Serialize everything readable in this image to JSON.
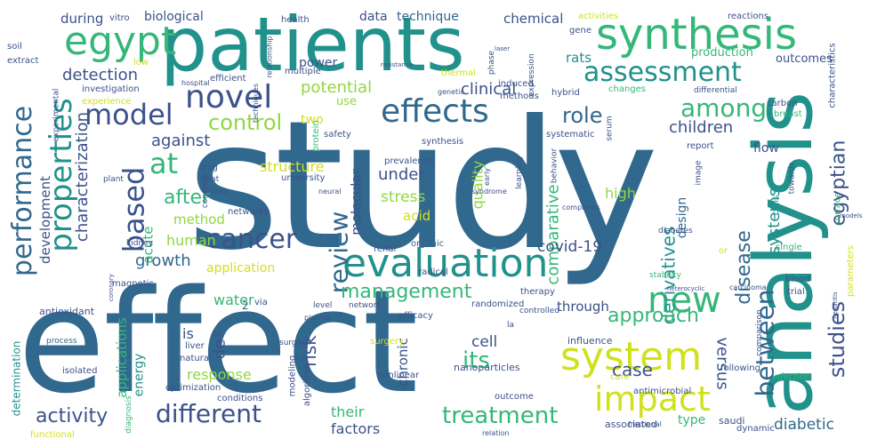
{
  "palette": {
    "background": "#ffffff",
    "dark_purple": "#440154",
    "indigo": "#3b528b",
    "blue": "#31688e",
    "teal": "#21918c",
    "green": "#35b779",
    "lime": "#90d743",
    "yellow": "#d0e11c",
    "bright_yellow": "#fde725"
  },
  "words": [
    {
      "text": "study",
      "color": "#31688e"
    },
    {
      "text": "effect",
      "color": "#31688e"
    },
    {
      "text": "patients",
      "color": "#21918c"
    },
    {
      "text": "analysis",
      "color": "#21918c"
    },
    {
      "text": "synthesis",
      "color": "#35b779"
    },
    {
      "text": "egypt",
      "color": "#35b779"
    },
    {
      "text": "evaluation",
      "color": "#21918c"
    },
    {
      "text": "effects",
      "color": "#31688e"
    },
    {
      "text": "novel",
      "color": "#3b528b"
    },
    {
      "text": "model",
      "color": "#3b528b"
    },
    {
      "text": "properties",
      "color": "#21918c"
    },
    {
      "text": "assessment",
      "color": "#21918c"
    },
    {
      "text": "system",
      "color": "#d0e11c"
    },
    {
      "text": "impact",
      "color": "#d0e11c"
    },
    {
      "text": "new",
      "color": "#35b779"
    },
    {
      "text": "cancer",
      "color": "#3b528b"
    },
    {
      "text": "based",
      "color": "#3b528b"
    },
    {
      "text": "performance",
      "color": "#31688e"
    },
    {
      "text": "different",
      "color": "#3b528b"
    },
    {
      "text": "treatment",
      "color": "#35b779"
    },
    {
      "text": "review",
      "color": "#31688e"
    },
    {
      "text": "at",
      "color": "#35b779"
    },
    {
      "text": "between",
      "color": "#31688e"
    },
    {
      "text": "studies",
      "color": "#3b528b"
    },
    {
      "text": "among",
      "color": "#35b779"
    },
    {
      "text": "egyptian",
      "color": "#3b528b"
    },
    {
      "text": "disease",
      "color": "#31688e"
    },
    {
      "text": "its",
      "color": "#35b779"
    },
    {
      "text": "management",
      "color": "#35b779"
    },
    {
      "text": "control",
      "color": "#90d743"
    },
    {
      "text": "role",
      "color": "#31688e"
    },
    {
      "text": "clinical",
      "color": "#3b528b"
    },
    {
      "text": "against",
      "color": "#3b528b"
    },
    {
      "text": "after",
      "color": "#35b779"
    },
    {
      "text": "children",
      "color": "#3b528b"
    },
    {
      "text": "systems",
      "color": "#21918c"
    },
    {
      "text": "derivatives",
      "color": "#21918c"
    },
    {
      "text": "comparative",
      "color": "#35b779"
    },
    {
      "text": "activity",
      "color": "#3b528b"
    },
    {
      "text": "approach",
      "color": "#35b779"
    },
    {
      "text": "potential",
      "color": "#90d743"
    },
    {
      "text": "detection",
      "color": "#3b528b"
    },
    {
      "text": "characterization",
      "color": "#3b528b"
    },
    {
      "text": "development",
      "color": "#3b528b"
    },
    {
      "text": "growth",
      "color": "#31688e"
    },
    {
      "text": "under",
      "color": "#3b528b"
    },
    {
      "text": "stress",
      "color": "#90d743"
    },
    {
      "text": "acid",
      "color": "#d0e11c"
    },
    {
      "text": "risk",
      "color": "#3b528b"
    },
    {
      "text": "case",
      "color": "#3b528b"
    },
    {
      "text": "versus",
      "color": "#3b528b"
    },
    {
      "text": "cell",
      "color": "#3b528b"
    },
    {
      "text": "response",
      "color": "#90d743"
    },
    {
      "text": "structure",
      "color": "#d0e11c"
    },
    {
      "text": "covid-19",
      "color": "#3b528b"
    },
    {
      "text": "high",
      "color": "#90d743"
    },
    {
      "text": "design",
      "color": "#31688e"
    },
    {
      "text": "human",
      "color": "#90d743"
    },
    {
      "text": "method",
      "color": "#90d743"
    },
    {
      "text": "acute",
      "color": "#35b779"
    },
    {
      "text": "quality",
      "color": "#90d743"
    },
    {
      "text": "molecular",
      "color": "#3b528b"
    },
    {
      "text": "application",
      "color": "#d0e11c"
    },
    {
      "text": "water",
      "color": "#35b779"
    },
    {
      "text": "through",
      "color": "#3b528b"
    },
    {
      "text": "is",
      "color": "#3b528b"
    },
    {
      "text": "de",
      "color": "#3b528b"
    },
    {
      "text": "their",
      "color": "#35b779"
    },
    {
      "text": "factors",
      "color": "#3b528b"
    },
    {
      "text": "energy",
      "color": "#21918c"
    },
    {
      "text": "applications",
      "color": "#35b779"
    },
    {
      "text": "chronic",
      "color": "#3b528b"
    },
    {
      "text": "diabetic",
      "color": "#31688e"
    },
    {
      "text": "type",
      "color": "#35b779"
    },
    {
      "text": "during",
      "color": "#3b528b"
    },
    {
      "text": "biological",
      "color": "#3b528b"
    },
    {
      "text": "technique",
      "color": "#31688e"
    },
    {
      "text": "chemical",
      "color": "#3b528b"
    },
    {
      "text": "rats",
      "color": "#21918c"
    },
    {
      "text": "production",
      "color": "#35b779"
    },
    {
      "text": "outcomes",
      "color": "#3b528b"
    },
    {
      "text": "power",
      "color": "#3b528b"
    },
    {
      "text": "data",
      "color": "#3b528b"
    },
    {
      "text": "flow",
      "color": "#3b528b"
    },
    {
      "text": "two",
      "color": "#d0e11c"
    },
    {
      "text": "use",
      "color": "#90d743"
    },
    {
      "text": "nanoparticles",
      "color": "#3b528b"
    },
    {
      "text": "university",
      "color": "#3b528b"
    },
    {
      "text": "prevalence",
      "color": "#3b528b"
    },
    {
      "text": "antioxidant",
      "color": "#3b528b"
    },
    {
      "text": "magnetic",
      "color": "#3b528b"
    },
    {
      "text": "determination",
      "color": "#21918c"
    },
    {
      "text": "optimization",
      "color": "#3b528b"
    },
    {
      "text": "influence",
      "color": "#3b528b"
    },
    {
      "text": "associated",
      "color": "#3b528b"
    },
    {
      "text": "saudi",
      "color": "#3b528b"
    },
    {
      "text": "report",
      "color": "#3b528b"
    },
    {
      "text": "surgery",
      "color": "#d0e11c"
    },
    {
      "text": "outcome",
      "color": "#3b528b"
    },
    {
      "text": "antimicrobial",
      "color": "#3b528b"
    },
    {
      "text": "therapy",
      "color": "#3b528b"
    },
    {
      "text": "randomized",
      "color": "#3b528b"
    },
    {
      "text": "efficacy",
      "color": "#3b528b"
    },
    {
      "text": "networks",
      "color": "#3b528b"
    },
    {
      "text": "kidney",
      "color": "#3b528b"
    },
    {
      "text": "conditions",
      "color": "#3b528b"
    },
    {
      "text": "liver",
      "color": "#3b528b"
    },
    {
      "text": "oil",
      "color": "#3b528b"
    },
    {
      "text": "natural",
      "color": "#3b528b"
    },
    {
      "text": "isolated",
      "color": "#3b528b"
    },
    {
      "text": "process",
      "color": "#31688e"
    },
    {
      "text": "via",
      "color": "#3b528b"
    },
    {
      "text": "network",
      "color": "#3b528b"
    },
    {
      "text": "level",
      "color": "#3b528b"
    },
    {
      "text": "renal",
      "color": "#3b528b"
    },
    {
      "text": "organic",
      "color": "#31688e"
    },
    {
      "text": "radical",
      "color": "#3b528b"
    },
    {
      "text": "health",
      "color": "#3b528b"
    },
    {
      "text": "vitro",
      "color": "#3b528b"
    },
    {
      "text": "soil",
      "color": "#3b528b"
    },
    {
      "text": "extract",
      "color": "#3b528b"
    },
    {
      "text": "investigation",
      "color": "#3b528b"
    },
    {
      "text": "experimental",
      "color": "#3b528b"
    },
    {
      "text": "efficient",
      "color": "#3b528b"
    },
    {
      "text": "induced",
      "color": "#3b528b"
    },
    {
      "text": "hybrid",
      "color": "#3b528b"
    },
    {
      "text": "changes",
      "color": "#35b779"
    },
    {
      "text": "methods",
      "color": "#3b528b"
    },
    {
      "text": "carbon",
      "color": "#3b528b"
    },
    {
      "text": "breast",
      "color": "#35b779"
    },
    {
      "text": "safety",
      "color": "#3b528b"
    },
    {
      "text": "systematic",
      "color": "#3b528b"
    },
    {
      "text": "protein",
      "color": "#35b779"
    },
    {
      "text": "blood",
      "color": "#3b528b"
    },
    {
      "text": "trial",
      "color": "#3b528b"
    },
    {
      "text": "single",
      "color": "#35b779"
    },
    {
      "text": "cells",
      "color": "#21918c"
    },
    {
      "text": "towards",
      "color": "#3b528b"
    },
    {
      "text": "stability",
      "color": "#35b779"
    },
    {
      "text": "controlled",
      "color": "#3b528b"
    },
    {
      "text": "diabetes",
      "color": "#3b528b"
    },
    {
      "text": "concrete",
      "color": "#3b528b"
    },
    {
      "text": "diagnosis",
      "color": "#35b779"
    },
    {
      "text": "modeling",
      "color": "#3b528b"
    },
    {
      "text": "algorithm",
      "color": "#3b528b"
    },
    {
      "text": "activities",
      "color": "#d0e11c"
    },
    {
      "text": "reactions",
      "color": "#3b528b"
    },
    {
      "text": "gene",
      "color": "#3b528b"
    },
    {
      "text": "low",
      "color": "#d0e11c"
    },
    {
      "text": "multiple",
      "color": "#3b528b"
    },
    {
      "text": "thermal",
      "color": "#d0e11c"
    },
    {
      "text": "expression",
      "color": "#3b528b"
    },
    {
      "text": "differential",
      "color": "#3b528b"
    },
    {
      "text": "experience",
      "color": "#d0e11c"
    },
    {
      "text": "surface",
      "color": "#35b779"
    },
    {
      "text": "characteristics",
      "color": "#3b528b"
    },
    {
      "text": "parameters",
      "color": "#d0e11c"
    },
    {
      "text": "image",
      "color": "#3b528b"
    },
    {
      "text": "infection",
      "color": "#35b779"
    },
    {
      "text": "care",
      "color": "#d0e11c"
    },
    {
      "text": "comparison",
      "color": "#3b528b"
    },
    {
      "text": "dynamic",
      "color": "#3b528b"
    },
    {
      "text": "following",
      "color": "#3b528b"
    },
    {
      "text": "functional",
      "color": "#d0e11c"
    },
    {
      "text": "relation",
      "color": "#3b528b"
    },
    {
      "text": "nonlinear",
      "color": "#3b528b"
    },
    {
      "text": "heat",
      "color": "#3b528b"
    },
    {
      "text": "drug",
      "color": "#3b528b"
    },
    {
      "text": "plant",
      "color": "#3b528b"
    },
    {
      "text": "urinary",
      "color": "#3b528b"
    },
    {
      "text": "neural",
      "color": "#3b528b"
    },
    {
      "text": "surgical",
      "color": "#3b528b"
    },
    {
      "text": "plasma",
      "color": "#3b528b"
    },
    {
      "text": "synthesis",
      "color": "#3b528b"
    },
    {
      "text": "learning",
      "color": "#3b528b"
    },
    {
      "text": "behavior",
      "color": "#3b528b"
    },
    {
      "text": "syndrome",
      "color": "#3b528b"
    },
    {
      "text": "complexes",
      "color": "#3b528b"
    },
    {
      "text": "early",
      "color": "#3b528b"
    },
    {
      "text": "hospital",
      "color": "#3b528b"
    },
    {
      "text": "genetic",
      "color": "#3b528b"
    },
    {
      "text": "techniques",
      "color": "#3b528b"
    },
    {
      "text": "relationship",
      "color": "#3b528b"
    },
    {
      "text": "resistance",
      "color": "#3b528b"
    },
    {
      "text": "phase",
      "color": "#3b528b"
    },
    {
      "text": "laser",
      "color": "#3b528b"
    },
    {
      "text": "serum",
      "color": "#3b528b"
    },
    {
      "text": "models",
      "color": "#3b528b"
    },
    {
      "text": "hepatitis",
      "color": "#3b528b"
    },
    {
      "text": "heterocyclic",
      "color": "#3b528b"
    },
    {
      "text": "carcinoma",
      "color": "#3b528b"
    },
    {
      "text": "or",
      "color": "#d0e11c"
    },
    {
      "text": "coronary",
      "color": "#3b528b"
    },
    {
      "text": "fractional",
      "color": "#3b528b"
    },
    {
      "text": "la",
      "color": "#3b528b"
    },
    {
      "text": "2",
      "color": "#3b528b"
    }
  ]
}
